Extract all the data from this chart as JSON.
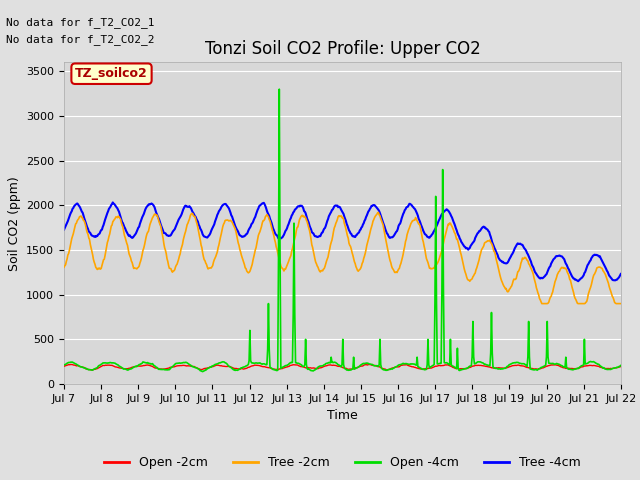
{
  "title": "Tonzi Soil CO2 Profile: Upper CO2",
  "ylabel": "Soil CO2 (ppm)",
  "xlabel": "Time",
  "no_data_text_1": "No data for f_T2_CO2_1",
  "no_data_text_2": "No data for f_T2_CO2_2",
  "legend_label_text": "TZ_soilco2",
  "ylim": [
    0,
    3600
  ],
  "yticks": [
    0,
    500,
    1000,
    1500,
    2000,
    2500,
    3000,
    3500
  ],
  "xlim": [
    0,
    15
  ],
  "series": {
    "open_2cm": {
      "label": "Open -2cm",
      "color": "#ff0000",
      "lw": 1.0
    },
    "tree_2cm": {
      "label": "Tree -2cm",
      "color": "#ffa500",
      "lw": 1.2
    },
    "open_4cm": {
      "label": "Open -4cm",
      "color": "#00dd00",
      "lw": 1.2
    },
    "tree_4cm": {
      "label": "Tree -4cm",
      "color": "#0000ff",
      "lw": 1.5
    }
  },
  "background_color": "#e0e0e0",
  "plot_bg_color": "#d8d8d8",
  "grid_color": "#ffffff",
  "legend_box_facecolor": "#ffffcc",
  "legend_box_edgecolor": "#cc0000",
  "title_fontsize": 12,
  "label_fontsize": 9,
  "tick_fontsize": 8,
  "nodata_fontsize": 8,
  "legend_fontsize": 9
}
